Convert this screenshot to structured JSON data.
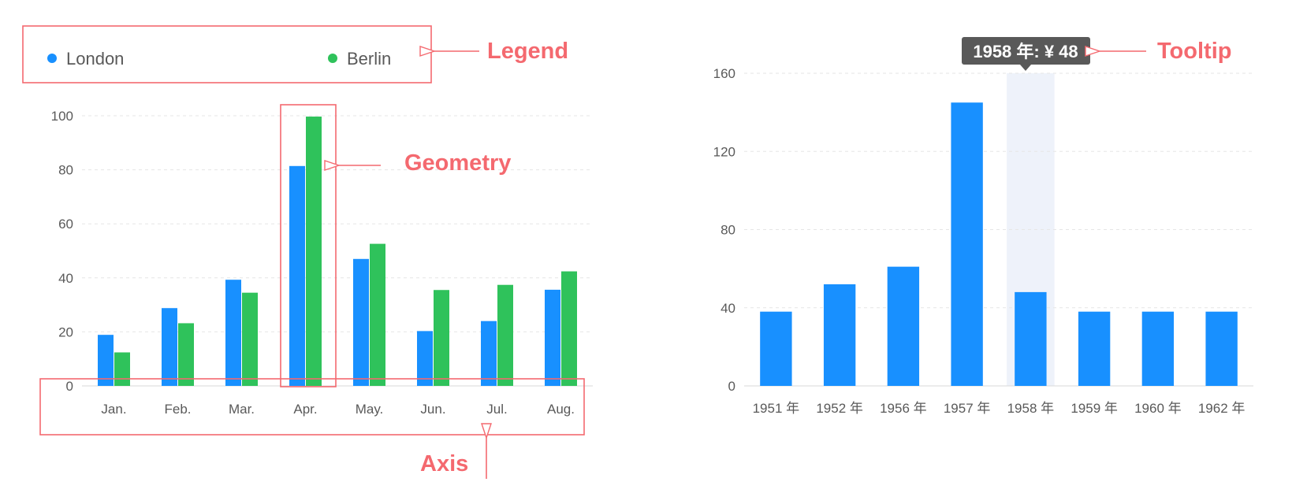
{
  "colors": {
    "london": "#1890ff",
    "berlin": "#2fc25b",
    "annotation": "#f4696f",
    "highlight": "#eef2fa",
    "tooltip_bg": "#595959"
  },
  "annotations": {
    "legend": "Legend",
    "geometry": "Geometry",
    "axis": "Axis",
    "tooltip": "Tooltip"
  },
  "chart_data": [
    {
      "type": "bar",
      "grid": true,
      "legend_position": "top",
      "categories": [
        "Jan.",
        "Feb.",
        "Mar.",
        "Apr.",
        "May.",
        "Jun.",
        "Jul.",
        "Aug."
      ],
      "ylim": [
        0,
        100
      ],
      "yticks": [
        0,
        20,
        40,
        60,
        80,
        100
      ],
      "series": [
        {
          "name": "London",
          "values": [
            18.9,
            28.8,
            39.3,
            81.4,
            47,
            20.3,
            24,
            35.6
          ]
        },
        {
          "name": "Berlin",
          "values": [
            12.4,
            23.2,
            34.5,
            99.7,
            52.6,
            35.5,
            37.4,
            42.4
          ]
        }
      ]
    },
    {
      "type": "bar",
      "grid": true,
      "categories": [
        "1951 年",
        "1952 年",
        "1956 年",
        "1957 年",
        "1958 年",
        "1959 年",
        "1960 年",
        "1962 年"
      ],
      "ylim": [
        0,
        160
      ],
      "yticks": [
        0,
        40,
        80,
        120,
        160
      ],
      "values": [
        38,
        52,
        61,
        145,
        48,
        38,
        38,
        38
      ],
      "highlight_category": "1958 年",
      "tooltip": "1958 年: ¥ 48"
    }
  ]
}
